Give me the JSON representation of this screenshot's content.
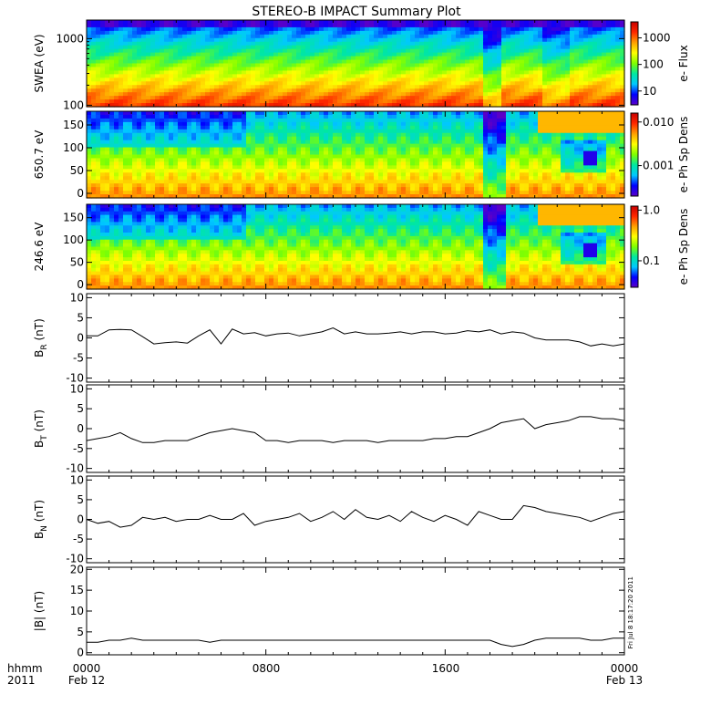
{
  "title": "STEREO-B IMPACT Summary Plot",
  "footer": {
    "left_top": "hhmm",
    "left_bottom": "2011",
    "timestamp": "Fri Jul  8 18:17:20 2011"
  },
  "colors": {
    "colormap": [
      "#5a00c8",
      "#0000ff",
      "#00c8ff",
      "#00e8a0",
      "#80ff00",
      "#ffff00",
      "#ffa000",
      "#ff2800",
      "#c80000"
    ],
    "line": "#000000",
    "axis": "#000000"
  },
  "chart_data": [
    {
      "type": "heatmap",
      "ylabel": "SWEA (eV)",
      "yscale": "log",
      "ylim": [
        95,
        1900
      ],
      "yticks": [
        100,
        1000
      ],
      "ytick_labels": [
        "100",
        "1000"
      ],
      "colorbar": {
        "label": "e- Flux",
        "scale": "log",
        "range": [
          3,
          4000
        ],
        "ticks": [
          10,
          100,
          1000
        ],
        "tick_labels": [
          "10",
          "100",
          "1000"
        ]
      }
    },
    {
      "type": "heatmap",
      "ylabel": "650.7 eV",
      "ylim": [
        -10,
        180
      ],
      "yticks": [
        0,
        50,
        100,
        150
      ],
      "ytick_labels": [
        "0",
        "50",
        "100",
        "150"
      ],
      "colorbar": {
        "label": "e- Ph Sp Dens",
        "scale": "log",
        "range": [
          0.0002,
          0.016
        ],
        "ticks": [
          0.001,
          0.01
        ],
        "tick_labels": [
          "0.001",
          "0.010"
        ]
      }
    },
    {
      "type": "heatmap",
      "ylabel": "246.6 eV",
      "ylim": [
        -10,
        180
      ],
      "yticks": [
        0,
        50,
        100,
        150
      ],
      "ytick_labels": [
        "0",
        "50",
        "100",
        "150"
      ],
      "colorbar": {
        "label": "e- Ph Sp Dens",
        "scale": "log",
        "range": [
          0.03,
          1.2
        ],
        "ticks": [
          0.1,
          1.0
        ],
        "tick_labels": [
          "0.1",
          "1.0"
        ]
      }
    },
    {
      "type": "line",
      "ylabel_main": "B",
      "ylabel_sub": "R",
      "ylabel_unit": "(nT)",
      "ylim": [
        -11,
        11
      ],
      "yticks": [
        -10,
        -5,
        0,
        5,
        10
      ],
      "ytick_labels": [
        "-10",
        "-5",
        "0",
        "5",
        "10"
      ],
      "series": [
        {
          "x": [
            0,
            0.5,
            1,
            1.5,
            2,
            2.5,
            3,
            3.5,
            4,
            4.5,
            5,
            5.5,
            6,
            6.5,
            7,
            7.5,
            8,
            8.5,
            9,
            9.5,
            10,
            10.5,
            11,
            11.5,
            12,
            12.5,
            13,
            13.5,
            14,
            14.5,
            15,
            15.5,
            16,
            16.5,
            17,
            17.5,
            18,
            18.5,
            19,
            19.5,
            20,
            20.5,
            21,
            21.5,
            22,
            22.5,
            23,
            23.5,
            24
          ],
          "y": [
            0.5,
            0.5,
            2.0,
            2.1,
            2.0,
            0.3,
            -1.5,
            -1.2,
            -1.0,
            -1.3,
            0.5,
            2.0,
            -1.5,
            2.2,
            1.0,
            1.3,
            0.5,
            1.0,
            1.2,
            0.5,
            1.0,
            1.5,
            2.5,
            1.0,
            1.5,
            1.0,
            1.0,
            1.2,
            1.5,
            1.0,
            1.5,
            1.5,
            1.0,
            1.2,
            1.8,
            1.5,
            2.0,
            1.0,
            1.5,
            1.2,
            0.0,
            -0.5,
            -0.5,
            -0.5,
            -1.0,
            -2.0,
            -1.5,
            -2.0,
            -1.5
          ]
        }
      ]
    },
    {
      "type": "line",
      "ylabel_main": "B",
      "ylabel_sub": "T",
      "ylabel_unit": "(nT)",
      "ylim": [
        -11,
        11
      ],
      "yticks": [
        -10,
        -5,
        0,
        5,
        10
      ],
      "ytick_labels": [
        "-10",
        "-5",
        "0",
        "5",
        "10"
      ],
      "series": [
        {
          "x": [
            0,
            0.5,
            1,
            1.5,
            2,
            2.5,
            3,
            3.5,
            4,
            4.5,
            5,
            5.5,
            6,
            6.5,
            7,
            7.5,
            8,
            8.5,
            9,
            9.5,
            10,
            10.5,
            11,
            11.5,
            12,
            12.5,
            13,
            13.5,
            14,
            14.5,
            15,
            15.5,
            16,
            16.5,
            17,
            17.5,
            18,
            18.5,
            19,
            19.5,
            20,
            20.5,
            21,
            21.5,
            22,
            22.5,
            23,
            23.5,
            24
          ],
          "y": [
            -3.0,
            -2.5,
            -2.0,
            -1.0,
            -2.5,
            -3.5,
            -3.5,
            -3.0,
            -3.0,
            -3.0,
            -2.0,
            -1.0,
            -0.5,
            0.0,
            -0.5,
            -1.0,
            -3.0,
            -3.0,
            -3.5,
            -3.0,
            -3.0,
            -3.0,
            -3.5,
            -3.0,
            -3.0,
            -3.0,
            -3.5,
            -3.0,
            -3.0,
            -3.0,
            -3.0,
            -2.5,
            -2.5,
            -2.0,
            -2.0,
            -1.0,
            0.0,
            1.5,
            2.0,
            2.5,
            0.0,
            1.0,
            1.5,
            2.0,
            3.0,
            3.0,
            2.5,
            2.5,
            2.0
          ]
        }
      ]
    },
    {
      "type": "line",
      "ylabel_main": "B",
      "ylabel_sub": "N",
      "ylabel_unit": "(nT)",
      "ylim": [
        -11,
        11
      ],
      "yticks": [
        -10,
        -5,
        0,
        5,
        10
      ],
      "ytick_labels": [
        "-10",
        "-5",
        "0",
        "5",
        "10"
      ],
      "series": [
        {
          "x": [
            0,
            0.5,
            1,
            1.5,
            2,
            2.5,
            3,
            3.5,
            4,
            4.5,
            5,
            5.5,
            6,
            6.5,
            7,
            7.5,
            8,
            8.5,
            9,
            9.5,
            10,
            10.5,
            11,
            11.5,
            12,
            12.5,
            13,
            13.5,
            14,
            14.5,
            15,
            15.5,
            16,
            16.5,
            17,
            17.5,
            18,
            18.5,
            19,
            19.5,
            20,
            20.5,
            21,
            21.5,
            22,
            22.5,
            23,
            23.5,
            24
          ],
          "y": [
            0.0,
            -1.0,
            -0.5,
            -2.0,
            -1.5,
            0.5,
            0.0,
            0.5,
            -0.5,
            0.0,
            0.0,
            1.0,
            0.0,
            0.0,
            1.5,
            -1.5,
            -0.5,
            0.0,
            0.5,
            1.5,
            -0.5,
            0.5,
            2.0,
            0.0,
            2.5,
            0.5,
            0.0,
            1.0,
            -0.5,
            2.0,
            0.5,
            -0.5,
            1.0,
            0.0,
            -1.5,
            2.0,
            1.0,
            0.0,
            0.0,
            3.5,
            3.0,
            2.0,
            1.5,
            1.0,
            0.5,
            -0.5,
            0.5,
            1.5,
            2.0
          ]
        }
      ]
    },
    {
      "type": "line",
      "ylabel": "|B| (nT)",
      "ylim": [
        -0.5,
        20.5
      ],
      "yticks": [
        0,
        5,
        10,
        15,
        20
      ],
      "ytick_labels": [
        "0",
        "5",
        "10",
        "15",
        "20"
      ],
      "series": [
        {
          "x": [
            0,
            0.5,
            1,
            1.5,
            2,
            2.5,
            3,
            3.5,
            4,
            4.5,
            5,
            5.5,
            6,
            6.5,
            7,
            7.5,
            8,
            8.5,
            9,
            9.5,
            10,
            10.5,
            11,
            11.5,
            12,
            12.5,
            13,
            13.5,
            14,
            14.5,
            15,
            15.5,
            16,
            16.5,
            17,
            17.5,
            18,
            18.5,
            19,
            19.5,
            20,
            20.5,
            21,
            21.5,
            22,
            22.5,
            23,
            23.5,
            24
          ],
          "y": [
            2.5,
            2.5,
            3.0,
            3.0,
            3.5,
            3.0,
            3.0,
            3.0,
            3.0,
            3.0,
            3.0,
            2.5,
            3.0,
            3.0,
            3.0,
            3.0,
            3.0,
            3.0,
            3.0,
            3.0,
            3.0,
            3.0,
            3.0,
            3.0,
            3.0,
            3.0,
            3.0,
            3.0,
            3.0,
            3.0,
            3.0,
            3.0,
            3.0,
            3.0,
            3.0,
            3.0,
            3.0,
            2.0,
            1.5,
            2.0,
            3.0,
            3.5,
            3.5,
            3.5,
            3.5,
            3.0,
            3.0,
            3.5,
            3.5
          ]
        }
      ]
    }
  ],
  "x_axis": {
    "range": [
      0,
      24
    ],
    "major_ticks": [
      0,
      8,
      16,
      24
    ],
    "tick_labels": [
      "0000",
      "0800",
      "1600",
      "0000"
    ],
    "date_labels": [
      "Feb 12",
      "Feb 13"
    ]
  }
}
